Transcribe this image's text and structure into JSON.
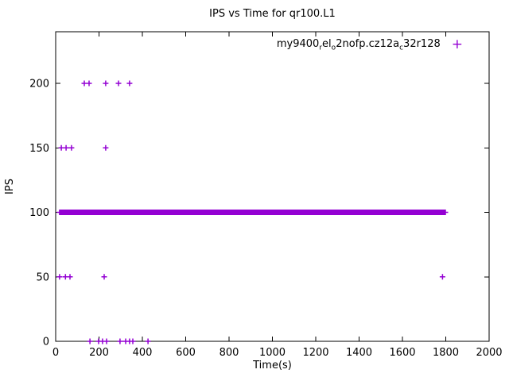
{
  "title": "IPS vs Time for qr100.L1",
  "chart_data": {
    "type": "scatter",
    "title": "IPS vs Time for qr100.L1",
    "xlabel": "Time(s)",
    "ylabel": "IPS",
    "xlim": [
      0,
      2000
    ],
    "ylim": [
      0,
      240
    ],
    "x_ticks": [
      0,
      200,
      400,
      600,
      800,
      1000,
      1200,
      1400,
      1600,
      1800,
      2000
    ],
    "y_ticks": [
      0,
      50,
      100,
      150,
      200
    ],
    "grid": false,
    "marker": "plus",
    "marker_color": "#9400D3",
    "legend": {
      "position": "top-right",
      "label_parts": [
        {
          "text": "my9400"
        },
        {
          "text": "r",
          "sub": true
        },
        {
          "text": "el"
        },
        {
          "text": "o",
          "sub": true
        },
        {
          "text": "2nofp.cz12a"
        },
        {
          "text": "c",
          "sub": true
        },
        {
          "text": "32r128"
        }
      ],
      "marker_glyph": "+"
    },
    "series": [
      {
        "name": "ips-points",
        "points": [
          [
            132,
            200
          ],
          [
            154,
            200
          ],
          [
            231,
            200
          ],
          [
            290,
            200
          ],
          [
            341,
            200
          ],
          [
            26,
            150
          ],
          [
            48,
            150
          ],
          [
            73,
            150
          ],
          [
            231,
            150
          ],
          [
            18,
            50
          ],
          [
            45,
            50
          ],
          [
            66,
            50
          ],
          [
            224,
            50
          ],
          [
            1785,
            50
          ],
          [
            158,
            0
          ],
          [
            198,
            0
          ],
          [
            216,
            0
          ],
          [
            235,
            0
          ],
          [
            297,
            0
          ],
          [
            323,
            0
          ],
          [
            341,
            0
          ],
          [
            356,
            0
          ],
          [
            426,
            0
          ]
        ],
        "band": {
          "y": 100,
          "x_start": 18,
          "x_end": 1800,
          "step": 4
        }
      }
    ]
  }
}
